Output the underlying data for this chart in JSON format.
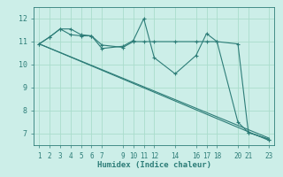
{
  "xlabel": "Humidex (Indice chaleur)",
  "bg_color": "#cceee8",
  "grid_color": "#aaddcc",
  "line_color": "#2d7d78",
  "ylim": [
    6.5,
    12.5
  ],
  "xlim": [
    0.5,
    23.5
  ],
  "yticks": [
    7,
    8,
    9,
    10,
    11,
    12
  ],
  "xticks": [
    1,
    2,
    3,
    4,
    5,
    6,
    7,
    9,
    10,
    11,
    12,
    14,
    16,
    17,
    18,
    20,
    21,
    23
  ],
  "lines": [
    {
      "x": [
        1,
        2,
        3,
        4,
        5,
        6,
        7,
        9,
        10,
        11,
        12,
        14,
        16,
        17,
        18,
        20,
        21,
        23
      ],
      "y": [
        10.9,
        11.2,
        11.55,
        11.55,
        11.3,
        11.25,
        10.7,
        10.8,
        11.05,
        12.0,
        10.3,
        9.6,
        10.4,
        11.35,
        11.0,
        10.9,
        7.05,
        6.75
      ],
      "markers": true
    },
    {
      "x": [
        1,
        2,
        3,
        4,
        5,
        6,
        7,
        9,
        10,
        11,
        12,
        14,
        16,
        17,
        18,
        20,
        21,
        23
      ],
      "y": [
        10.9,
        11.2,
        11.55,
        11.3,
        11.25,
        11.25,
        10.85,
        10.75,
        11.0,
        11.0,
        11.0,
        11.0,
        11.0,
        11.0,
        11.0,
        7.5,
        7.05,
        6.75
      ],
      "markers": true
    },
    {
      "x": [
        1,
        23
      ],
      "y": [
        10.9,
        6.8
      ],
      "markers": false
    },
    {
      "x": [
        1,
        23
      ],
      "y": [
        10.9,
        6.7
      ],
      "markers": false
    }
  ]
}
